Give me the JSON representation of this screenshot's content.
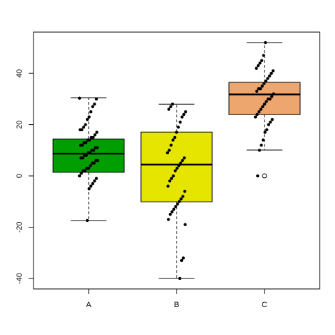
{
  "chart_data": {
    "type": "boxplot",
    "categories": [
      "A",
      "B",
      "C"
    ],
    "ylim": [
      -44.1,
      56.1
    ],
    "yticks": [
      -40,
      -20,
      0,
      20,
      40
    ],
    "boxes": [
      {
        "color": "#009e00",
        "whisker_low": -17.4,
        "q1": 1.4,
        "median": 8.7,
        "q3": 14.4,
        "whisker_high": 30.5,
        "outliers": [],
        "points": [
          30.3,
          30,
          28,
          27,
          25,
          23,
          22,
          20,
          19,
          18,
          18,
          17,
          16,
          15,
          15,
          14,
          14,
          13,
          13,
          12,
          12,
          11,
          11,
          10,
          10,
          9,
          9,
          8,
          8,
          7,
          7,
          6,
          6,
          5,
          5,
          4,
          3,
          3,
          2,
          2,
          1,
          0,
          -1,
          -2,
          -3,
          -4,
          -5,
          -17.4
        ]
      },
      {
        "color": "#e5e500",
        "whisker_low": -40,
        "q1": -10.1,
        "median": 4.4,
        "q3": 17.1,
        "whisker_high": 28,
        "outliers": [],
        "points": [
          28,
          27,
          26,
          25,
          24,
          23,
          21,
          19,
          17,
          15,
          14,
          12,
          10,
          9,
          7,
          6,
          5,
          4,
          3,
          2,
          0,
          -1,
          -2,
          -4,
          -6,
          -8,
          -9,
          -10,
          -11,
          -12,
          -13,
          -14,
          -15,
          -17,
          -19,
          -32,
          -33,
          -40
        ]
      },
      {
        "color": "#eda66e",
        "whisker_low": 10.1,
        "q1": 23.9,
        "median": 31.8,
        "q3": 36.5,
        "whisker_high": 52,
        "outliers": [
          0
        ],
        "points": [
          52,
          47,
          45,
          44,
          43,
          42,
          41,
          40,
          39,
          38,
          37,
          36,
          35,
          34,
          34,
          33,
          32,
          31,
          30,
          30,
          29,
          28,
          27,
          26,
          25,
          24,
          23,
          22,
          21,
          20,
          18,
          17,
          14,
          12,
          10,
          0
        ]
      }
    ]
  }
}
